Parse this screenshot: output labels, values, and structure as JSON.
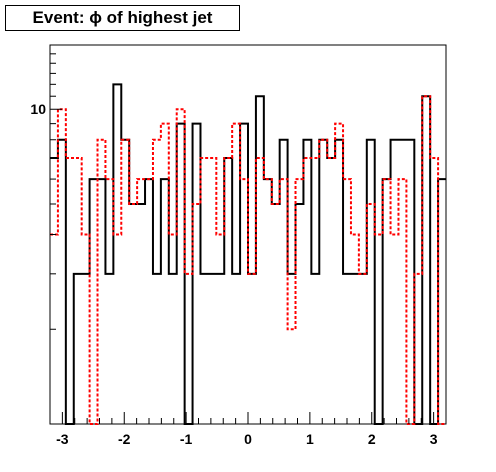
{
  "chart_data": {
    "type": "histogram-step",
    "title": "Event: ϕ of highest jet",
    "xlabel": "",
    "ylabel": "",
    "xlim": [
      -3.2,
      3.2
    ],
    "ylim": [
      1,
      16
    ],
    "yscale": "log",
    "grid": false,
    "legend": "none",
    "x_ticks": [
      -3,
      -2,
      -1,
      0,
      1,
      2,
      3
    ],
    "y_ticks": [
      10
    ],
    "bin_edges": [
      -3.2,
      -3.072,
      -2.944,
      -2.816,
      -2.688,
      -2.56,
      -2.432,
      -2.304,
      -2.176,
      -2.048,
      -1.92,
      -1.792,
      -1.664,
      -1.536,
      -1.408,
      -1.28,
      -1.152,
      -1.024,
      -0.896,
      -0.768,
      -0.64,
      -0.512,
      -0.384,
      -0.256,
      -0.128,
      0,
      0.128,
      0.256,
      0.384,
      0.512,
      0.64,
      0.768,
      0.896,
      1.024,
      1.152,
      1.28,
      1.408,
      1.536,
      1.664,
      1.792,
      1.92,
      2.048,
      2.176,
      2.304,
      2.432,
      2.56,
      2.688,
      2.816,
      2.944,
      3.072,
      3.2
    ],
    "series": [
      {
        "color": "#000000",
        "dash": "solid",
        "values": [
          7,
          8,
          1,
          3,
          3,
          6,
          6,
          3,
          12,
          8,
          5,
          5,
          6,
          3,
          6,
          3,
          9,
          1,
          9,
          3,
          3,
          3,
          7,
          3,
          9,
          3,
          11,
          6,
          5,
          8,
          3,
          5,
          8,
          3,
          8,
          7,
          8,
          3,
          3,
          3,
          8,
          1,
          6,
          8,
          8,
          8,
          1,
          11,
          1,
          6
        ]
      },
      {
        "color": "#ff0000",
        "dash": "dotted",
        "values": [
          4,
          10,
          7,
          7,
          4,
          1,
          8,
          6,
          4,
          8,
          5,
          6,
          6,
          8,
          9,
          4,
          10,
          3,
          5,
          7,
          7,
          4,
          7,
          9,
          6,
          3,
          7,
          6,
          5,
          6,
          2,
          6,
          7,
          7,
          8,
          7,
          9,
          6,
          4,
          3,
          5,
          4,
          6,
          4,
          6,
          1,
          3,
          11,
          7,
          1
        ]
      }
    ]
  }
}
